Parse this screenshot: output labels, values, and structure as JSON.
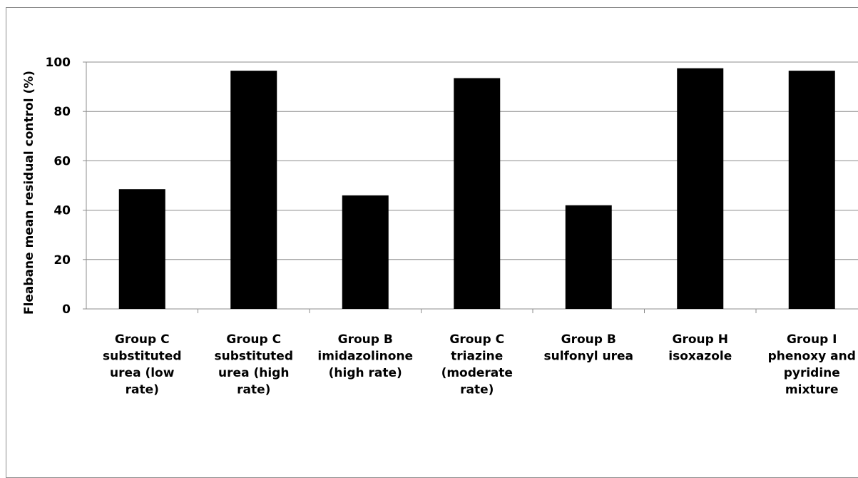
{
  "chart_data": {
    "type": "bar",
    "title": "",
    "xlabel": "",
    "ylabel": "Fleabane mean residual control (%)",
    "ylim": [
      0,
      100
    ],
    "yticks": [
      0,
      20,
      40,
      60,
      80,
      100
    ],
    "grid": true,
    "bar_color": "#000000",
    "categories": [
      [
        "Group C",
        "substituted",
        "urea (low",
        "rate)"
      ],
      [
        "Group C",
        "substituted",
        "urea (high",
        "rate)"
      ],
      [
        "Group B",
        "imidazolinone",
        "(high rate)"
      ],
      [
        "Group C",
        "triazine",
        "(moderate",
        "rate)"
      ],
      [
        "Group B",
        "sulfonyl urea"
      ],
      [
        "Group H",
        "isoxazole"
      ],
      [
        "Group I",
        "phenoxy and",
        "pyridine",
        "mixture"
      ]
    ],
    "values": [
      48.5,
      96.5,
      46,
      93.5,
      42,
      97.5,
      96.5
    ]
  }
}
